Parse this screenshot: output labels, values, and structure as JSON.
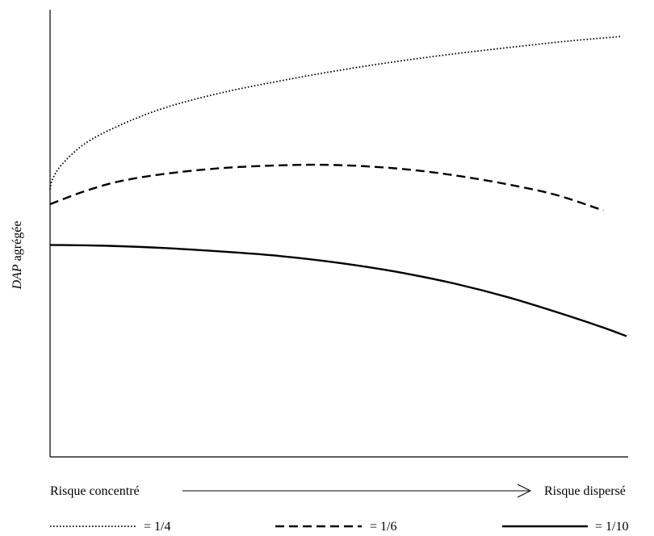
{
  "chart_data": {
    "type": "line",
    "ylabel_italic": "DAP",
    "ylabel_rest": " agrégée",
    "x_start_label": "Risque concentré",
    "x_end_label": "Risque dispersé",
    "x_range": [
      0,
      1
    ],
    "y_range": [
      0,
      1
    ],
    "grid": false,
    "legend_position": "bottom",
    "series": [
      {
        "name": "= 1/4",
        "dash": "dotted",
        "points": [
          [
            0.0,
            0.598
          ],
          [
            0.004,
            0.62
          ],
          [
            0.02,
            0.653
          ],
          [
            0.06,
            0.7
          ],
          [
            0.12,
            0.741
          ],
          [
            0.2,
            0.781
          ],
          [
            0.3,
            0.815
          ],
          [
            0.4,
            0.841
          ],
          [
            0.5,
            0.864
          ],
          [
            0.6,
            0.884
          ],
          [
            0.7,
            0.901
          ],
          [
            0.8,
            0.916
          ],
          [
            0.9,
            0.93
          ],
          [
            0.99,
            0.94
          ]
        ]
      },
      {
        "name": "= 1/6",
        "dash": "dashed",
        "points": [
          [
            0.0,
            0.565
          ],
          [
            0.06,
            0.594
          ],
          [
            0.12,
            0.616
          ],
          [
            0.2,
            0.633
          ],
          [
            0.3,
            0.646
          ],
          [
            0.4,
            0.652
          ],
          [
            0.48,
            0.653
          ],
          [
            0.56,
            0.649
          ],
          [
            0.64,
            0.64
          ],
          [
            0.72,
            0.626
          ],
          [
            0.8,
            0.608
          ],
          [
            0.88,
            0.585
          ],
          [
            0.96,
            0.551
          ]
        ]
      },
      {
        "name": "= 1/10",
        "dash": "solid",
        "points": [
          [
            0.0,
            0.474
          ],
          [
            0.1,
            0.472
          ],
          [
            0.2,
            0.467
          ],
          [
            0.3,
            0.459
          ],
          [
            0.4,
            0.449
          ],
          [
            0.5,
            0.434
          ],
          [
            0.6,
            0.414
          ],
          [
            0.7,
            0.388
          ],
          [
            0.8,
            0.355
          ],
          [
            0.9,
            0.315
          ],
          [
            0.96,
            0.289
          ],
          [
            1.0,
            0.27
          ]
        ]
      }
    ]
  }
}
